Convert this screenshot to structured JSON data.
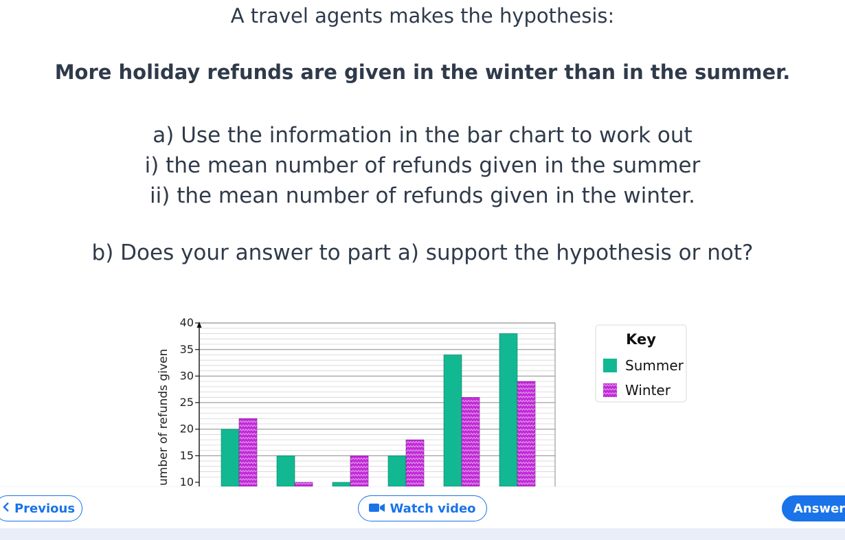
{
  "question": {
    "intro": "A travel agents makes the hypothesis:",
    "hypothesis": "More holiday refunds are given in the winter than in the summer.",
    "part_a": [
      "a) Use the information in the bar chart to work out",
      "i) the mean number of refunds given in the summer",
      "ii) the mean number of refunds given in the winter."
    ],
    "part_b": "b) Does your answer to part a) support the hypothesis or not?"
  },
  "key": {
    "title": "Key",
    "summer_label": "Summer",
    "winter_label": "Winter"
  },
  "colors": {
    "summer": "#12b891",
    "winter": "#c02bd6",
    "accent": "#1a73e8"
  },
  "chart_data": {
    "type": "bar",
    "ylabel": "umber of refunds given",
    "yticks": [
      10,
      15,
      20,
      25,
      30,
      35,
      40
    ],
    "ylim": [
      10,
      41
    ],
    "grid": true,
    "legend": "right",
    "series": [
      {
        "name": "Summer",
        "values": [
          20,
          15,
          10,
          15,
          34,
          38
        ]
      },
      {
        "name": "Winter",
        "values": [
          22,
          10,
          15,
          18,
          26,
          29
        ]
      }
    ]
  },
  "nav": {
    "previous": "Previous",
    "watch_video": "Watch video",
    "answer": "Answer",
    "prev_icon": "chevron-left-icon",
    "video_icon": "video-camera-icon"
  }
}
